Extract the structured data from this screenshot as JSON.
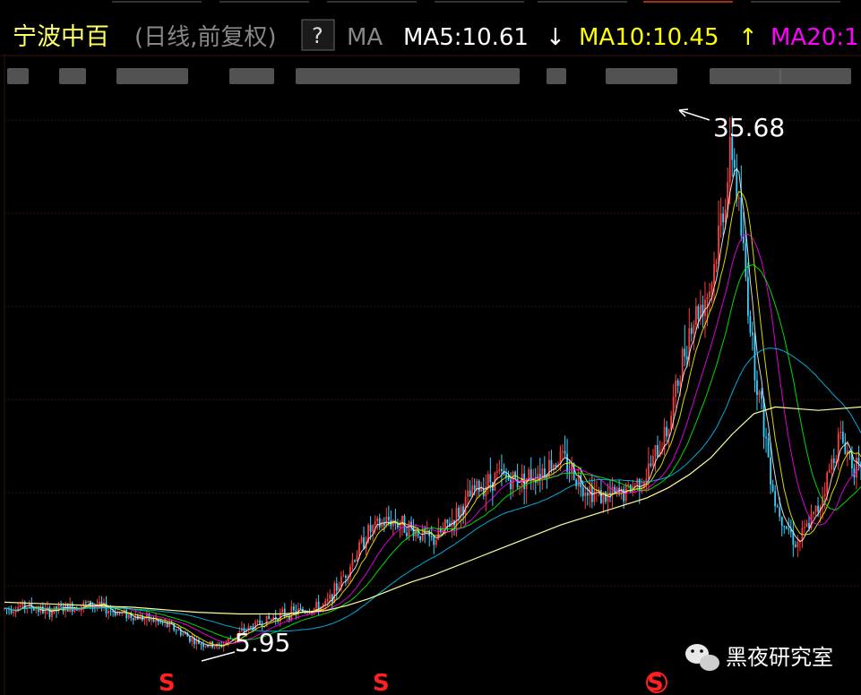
{
  "header": {
    "stock_name": "宁波中百",
    "mode": "(日线,前复权)",
    "help_label": "?",
    "indicator": "MA",
    "ma5": {
      "label": "MA5:10.61",
      "arrow": "↓",
      "color": "#ffffff"
    },
    "ma10": {
      "label": "MA10:10.45",
      "arrow": "↑",
      "color": "#ffff00"
    },
    "ma20": {
      "label": "MA20:1",
      "color": "#ff00ff"
    }
  },
  "watermark": {
    "text": "黑夜研究室",
    "icon": "wechat-icon"
  },
  "annotations": {
    "high_label": "35.68",
    "low_label": "5.95"
  },
  "markers": [
    "S",
    "S",
    "S"
  ],
  "colors": {
    "background": "#000000",
    "grid": "#3a0f0f",
    "up": "#ff3b3b",
    "down": "#3ad0ff",
    "ma5": "#ffffff",
    "ma10": "#ffff00",
    "ma20": "#ff00ff",
    "ma30": "#00ff00",
    "ma60": "#00c8ff",
    "ma120": "#ffff99",
    "marker": "#ff2020"
  },
  "chart_data": {
    "type": "line",
    "title": "宁波中百",
    "xlabel": "",
    "ylabel": "",
    "ylim": [
      5.0,
      38.0
    ],
    "grid": true,
    "x": [
      0,
      5,
      10,
      15,
      20,
      25,
      30,
      35,
      40,
      45,
      50,
      55,
      60,
      65,
      70,
      75,
      80,
      85,
      90,
      95,
      100,
      105,
      110,
      115,
      120,
      125,
      130,
      135,
      140,
      145,
      150,
      155,
      160,
      165,
      170,
      175,
      180,
      185,
      190,
      195,
      200
    ],
    "series": [
      {
        "name": "price_path",
        "values": [
          8.2,
          8.4,
          8.0,
          8.3,
          8.5,
          8.1,
          7.8,
          7.5,
          7.0,
          6.2,
          5.95,
          6.8,
          7.4,
          7.9,
          8.1,
          8.4,
          10.5,
          12.8,
          13.5,
          13.0,
          12.2,
          13.6,
          15.3,
          16.1,
          15.8,
          16.4,
          17.2,
          15.6,
          14.8,
          15.1,
          16.2,
          19.0,
          25.0,
          27.5,
          35.68,
          23.0,
          14.5,
          12.0,
          14.2,
          18.5,
          16.0
        ]
      },
      {
        "name": "MA120",
        "values": [
          8.6,
          8.55,
          8.5,
          8.45,
          8.4,
          8.35,
          8.3,
          8.2,
          8.1,
          8.0,
          7.95,
          7.9,
          7.9,
          7.9,
          8.0,
          8.1,
          8.4,
          8.8,
          9.3,
          9.8,
          10.2,
          10.7,
          11.2,
          11.7,
          12.2,
          12.7,
          13.2,
          13.6,
          14.0,
          14.4,
          14.8,
          15.4,
          16.2,
          17.2,
          18.6,
          19.8,
          20.2,
          20.1,
          20.0,
          20.1,
          20.2
        ]
      }
    ]
  }
}
